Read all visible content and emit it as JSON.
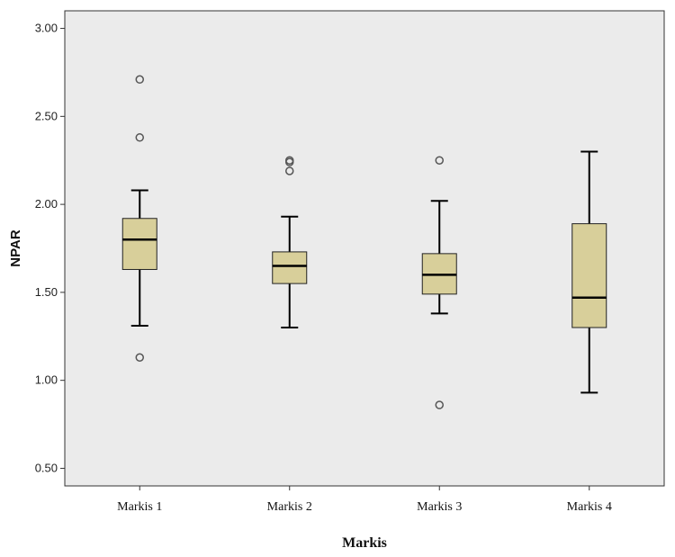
{
  "chart_data": {
    "type": "boxplot",
    "title": "",
    "xlabel": "Markis",
    "ylabel": "NPAR",
    "ylim": [
      0.4,
      3.1
    ],
    "yticks": [
      "0.50",
      "1.00",
      "1.50",
      "2.00",
      "2.50",
      "3.00"
    ],
    "categories": [
      "Markis 1",
      "Markis 2",
      "Markis 3",
      "Markis 4"
    ],
    "boxes": [
      {
        "category": "Markis 1",
        "whisker_low": 1.31,
        "q1": 1.63,
        "median": 1.8,
        "q3": 1.92,
        "whisker_high": 2.08,
        "outliers": [
          2.71,
          2.38,
          1.13
        ]
      },
      {
        "category": "Markis 2",
        "whisker_low": 1.3,
        "q1": 1.55,
        "median": 1.65,
        "q3": 1.73,
        "whisker_high": 1.93,
        "outliers": [
          2.25,
          2.24,
          2.19
        ]
      },
      {
        "category": "Markis 3",
        "whisker_low": 1.38,
        "q1": 1.49,
        "median": 1.6,
        "q3": 1.72,
        "whisker_high": 2.02,
        "outliers": [
          2.25,
          0.86
        ]
      },
      {
        "category": "Markis 4",
        "whisker_low": 0.93,
        "q1": 1.3,
        "median": 1.47,
        "q3": 1.89,
        "whisker_high": 2.3,
        "outliers": []
      }
    ],
    "grid": false,
    "colors": {
      "plot_bg": "#ebebeb",
      "box_fill": "#d8cf9a",
      "line": "#000000",
      "outlier": "#555555"
    }
  }
}
